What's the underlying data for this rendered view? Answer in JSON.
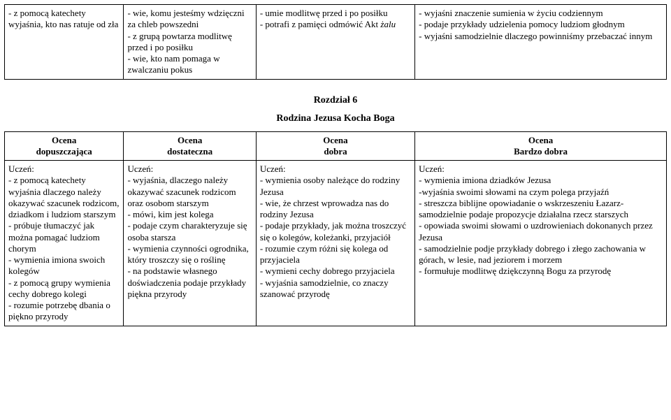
{
  "table1": {
    "col_widths": [
      "18%",
      "20%",
      "24%",
      "38%"
    ],
    "cells": [
      "- z pomocą katechety wyjaśnia, kto nas ratuje od zła",
      "- wie, komu jesteśmy wdzięczni za chleb powszedni\n- z grupą powtarza modlitwę przed i po posiłku\n- wie, kto nam pomaga w zwalczaniu pokus",
      "- umie modlitwę przed i po posiłku\n- potrafi z pamięci odmówić Akt żalu",
      "- wyjaśni znaczenie sumienia w życiu codziennym\n- podaje przykłady udzielenia pomocy ludziom głodnym\n- wyjaśni samodzielnie dlaczego powinniśmy przebaczać innym"
    ]
  },
  "section": {
    "chapter": "Rozdział 6",
    "title": "Rodzina Jezusa Kocha Boga"
  },
  "table2": {
    "col_widths": [
      "18%",
      "20%",
      "24%",
      "38%"
    ],
    "headers": [
      {
        "line1": "Ocena",
        "line2": "dopuszczająca"
      },
      {
        "line1": "Ocena",
        "line2": "dostateczna"
      },
      {
        "line1": "Ocena",
        "line2": "dobra"
      },
      {
        "line1": "Ocena",
        "line2": "Bardzo dobra"
      }
    ],
    "cells": [
      "Uczeń:\n- z pomocą katechety wyjaśnia dlaczego należy okazywać szacunek rodzicom, dziadkom i ludziom starszym\n- próbuje tłumaczyć jak można pomagać ludziom chorym\n- wymienia imiona swoich kolegów\n- z pomocą grupy wymienia cechy dobrego kolegi\n- rozumie potrzebę dbania o piękno przyrody",
      "Uczeń:\n- wyjaśnia, dlaczego należy okazywać szacunek rodzicom oraz osobom starszym\n- mówi, kim jest kolega\n- podaje czym charakteryzuje się osoba starsza\n- wymienia czynności ogrodnika, który troszczy się o roślinę\n- na podstawie własnego doświadczenia podaje przykłady piękna przyrody",
      "Uczeń:\n- wymienia osoby należące do rodziny Jezusa\n- wie, że chrzest wprowadza nas do rodziny Jezusa\n- podaje przykłady, jak można troszczyć się o kolegów, koleżanki, przyjaciół\n- rozumie czym różni się kolega od przyjaciela\n- wymieni cechy dobrego przyjaciela\n- wyjaśnia samodzielnie, co znaczy szanować przyrodę",
      "Uczeń:\n- wymienia imiona dziadków Jezusa\n-wyjaśnia swoimi słowami na czym polega przyjaźń\n- streszcza biblijne opowiadanie o wskrzeszeniu Łazarz- samodzielnie podaje propozycje działalna rzecz starszych\n- opowiada swoimi słowami o uzdrowieniach dokonanych przez Jezusa\n- samodzielnie podje przykłady dobrego i złego zachowania w górach, w lesie, nad jeziorem i morzem\n- formułuje modlitwę dziękczynną Bogu za przyrodę"
    ]
  }
}
